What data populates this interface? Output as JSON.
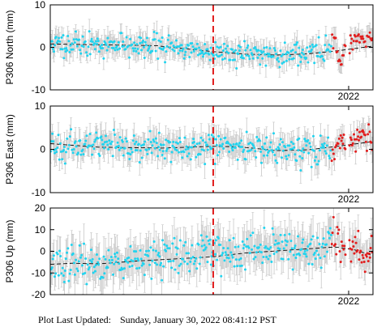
{
  "colors": {
    "data_normal": "#22d3ee",
    "data_recent": "#e11d1d",
    "error_bar": "#c8c8c8",
    "trend": "#000000",
    "event_line": "#e11d1d"
  },
  "footer": {
    "label": "Plot Last Updated:",
    "timestamp": "Sunday, January 30, 2022 08:41:12 PST"
  },
  "chart_data": [
    {
      "type": "scatter",
      "ylabel": "P306 North (mm)",
      "ylim": [
        -10,
        10
      ],
      "yticks": [
        "10",
        "0",
        "-10"
      ],
      "xtick_label": "2022",
      "x_range": [
        2017.25,
        2022.3
      ],
      "event_x": 2019.8,
      "recent_from": 2021.65,
      "trend": [
        [
          2017.25,
          0.8
        ],
        [
          2018.9,
          0.4
        ],
        [
          2019.8,
          -1.0
        ],
        [
          2020.3,
          -1.6
        ],
        [
          2020.8,
          -1.8
        ],
        [
          2021.3,
          -1.5
        ],
        [
          2021.8,
          -0.7
        ],
        [
          2022.3,
          0.3
        ]
      ],
      "noise": 1.3,
      "error": 2.2,
      "features": [
        [
          2021.55,
          2021.72,
          2.3
        ],
        [
          2021.72,
          2021.85,
          -1.5
        ],
        [
          2021.85,
          2021.98,
          2.0
        ],
        [
          2022.0,
          2022.15,
          2.8
        ],
        [
          2022.15,
          2022.3,
          1.0
        ]
      ],
      "seed": 11
    },
    {
      "type": "scatter",
      "ylabel": "P306 East (mm)",
      "ylim": [
        -10,
        10
      ],
      "yticks": [
        "10",
        "0",
        "-10"
      ],
      "xtick_label": "2022",
      "x_range": [
        2017.25,
        2022.3
      ],
      "event_x": 2019.8,
      "recent_from": 2021.65,
      "trend": [
        [
          2017.25,
          1.3
        ],
        [
          2018.0,
          0.5
        ],
        [
          2019.0,
          0.3
        ],
        [
          2019.8,
          0.7
        ],
        [
          2020.2,
          0.6
        ],
        [
          2020.8,
          -0.3
        ],
        [
          2021.3,
          -0.1
        ],
        [
          2021.8,
          0.8
        ],
        [
          2022.3,
          1.8
        ]
      ],
      "noise": 1.6,
      "error": 2.6,
      "features": [
        [
          2021.55,
          2021.7,
          -1.5
        ],
        [
          2021.7,
          2021.82,
          1.0
        ],
        [
          2022.0,
          2022.15,
          1.5
        ],
        [
          2022.15,
          2022.3,
          1.2
        ]
      ],
      "seed": 23
    },
    {
      "type": "scatter",
      "ylabel": "P306 Up (mm)",
      "ylim": [
        -20,
        20
      ],
      "yticks": [
        "20",
        "10",
        "0",
        "-10",
        "-20"
      ],
      "xtick_label": "2022",
      "x_range": [
        2017.25,
        2022.3
      ],
      "event_x": 2019.8,
      "recent_from": 2021.65,
      "trend": [
        [
          2017.25,
          -6
        ],
        [
          2017.6,
          -5.5
        ],
        [
          2018.0,
          -5.8
        ],
        [
          2018.6,
          -4.5
        ],
        [
          2019.2,
          -3.5
        ],
        [
          2019.8,
          -2.5
        ],
        [
          2020.3,
          -0.8
        ],
        [
          2020.8,
          0.2
        ],
        [
          2021.3,
          1.2
        ],
        [
          2021.7,
          2.0
        ],
        [
          2022.0,
          0.8
        ],
        [
          2022.3,
          -2.0
        ]
      ],
      "noise": 4.0,
      "error": 7.5,
      "features": [
        [
          2019.6,
          2019.95,
          3.0
        ],
        [
          2020.5,
          2021.0,
          2.5
        ],
        [
          2021.3,
          2021.55,
          -1.5
        ],
        [
          2021.62,
          2021.78,
          5.0
        ]
      ],
      "seed": 37
    }
  ]
}
